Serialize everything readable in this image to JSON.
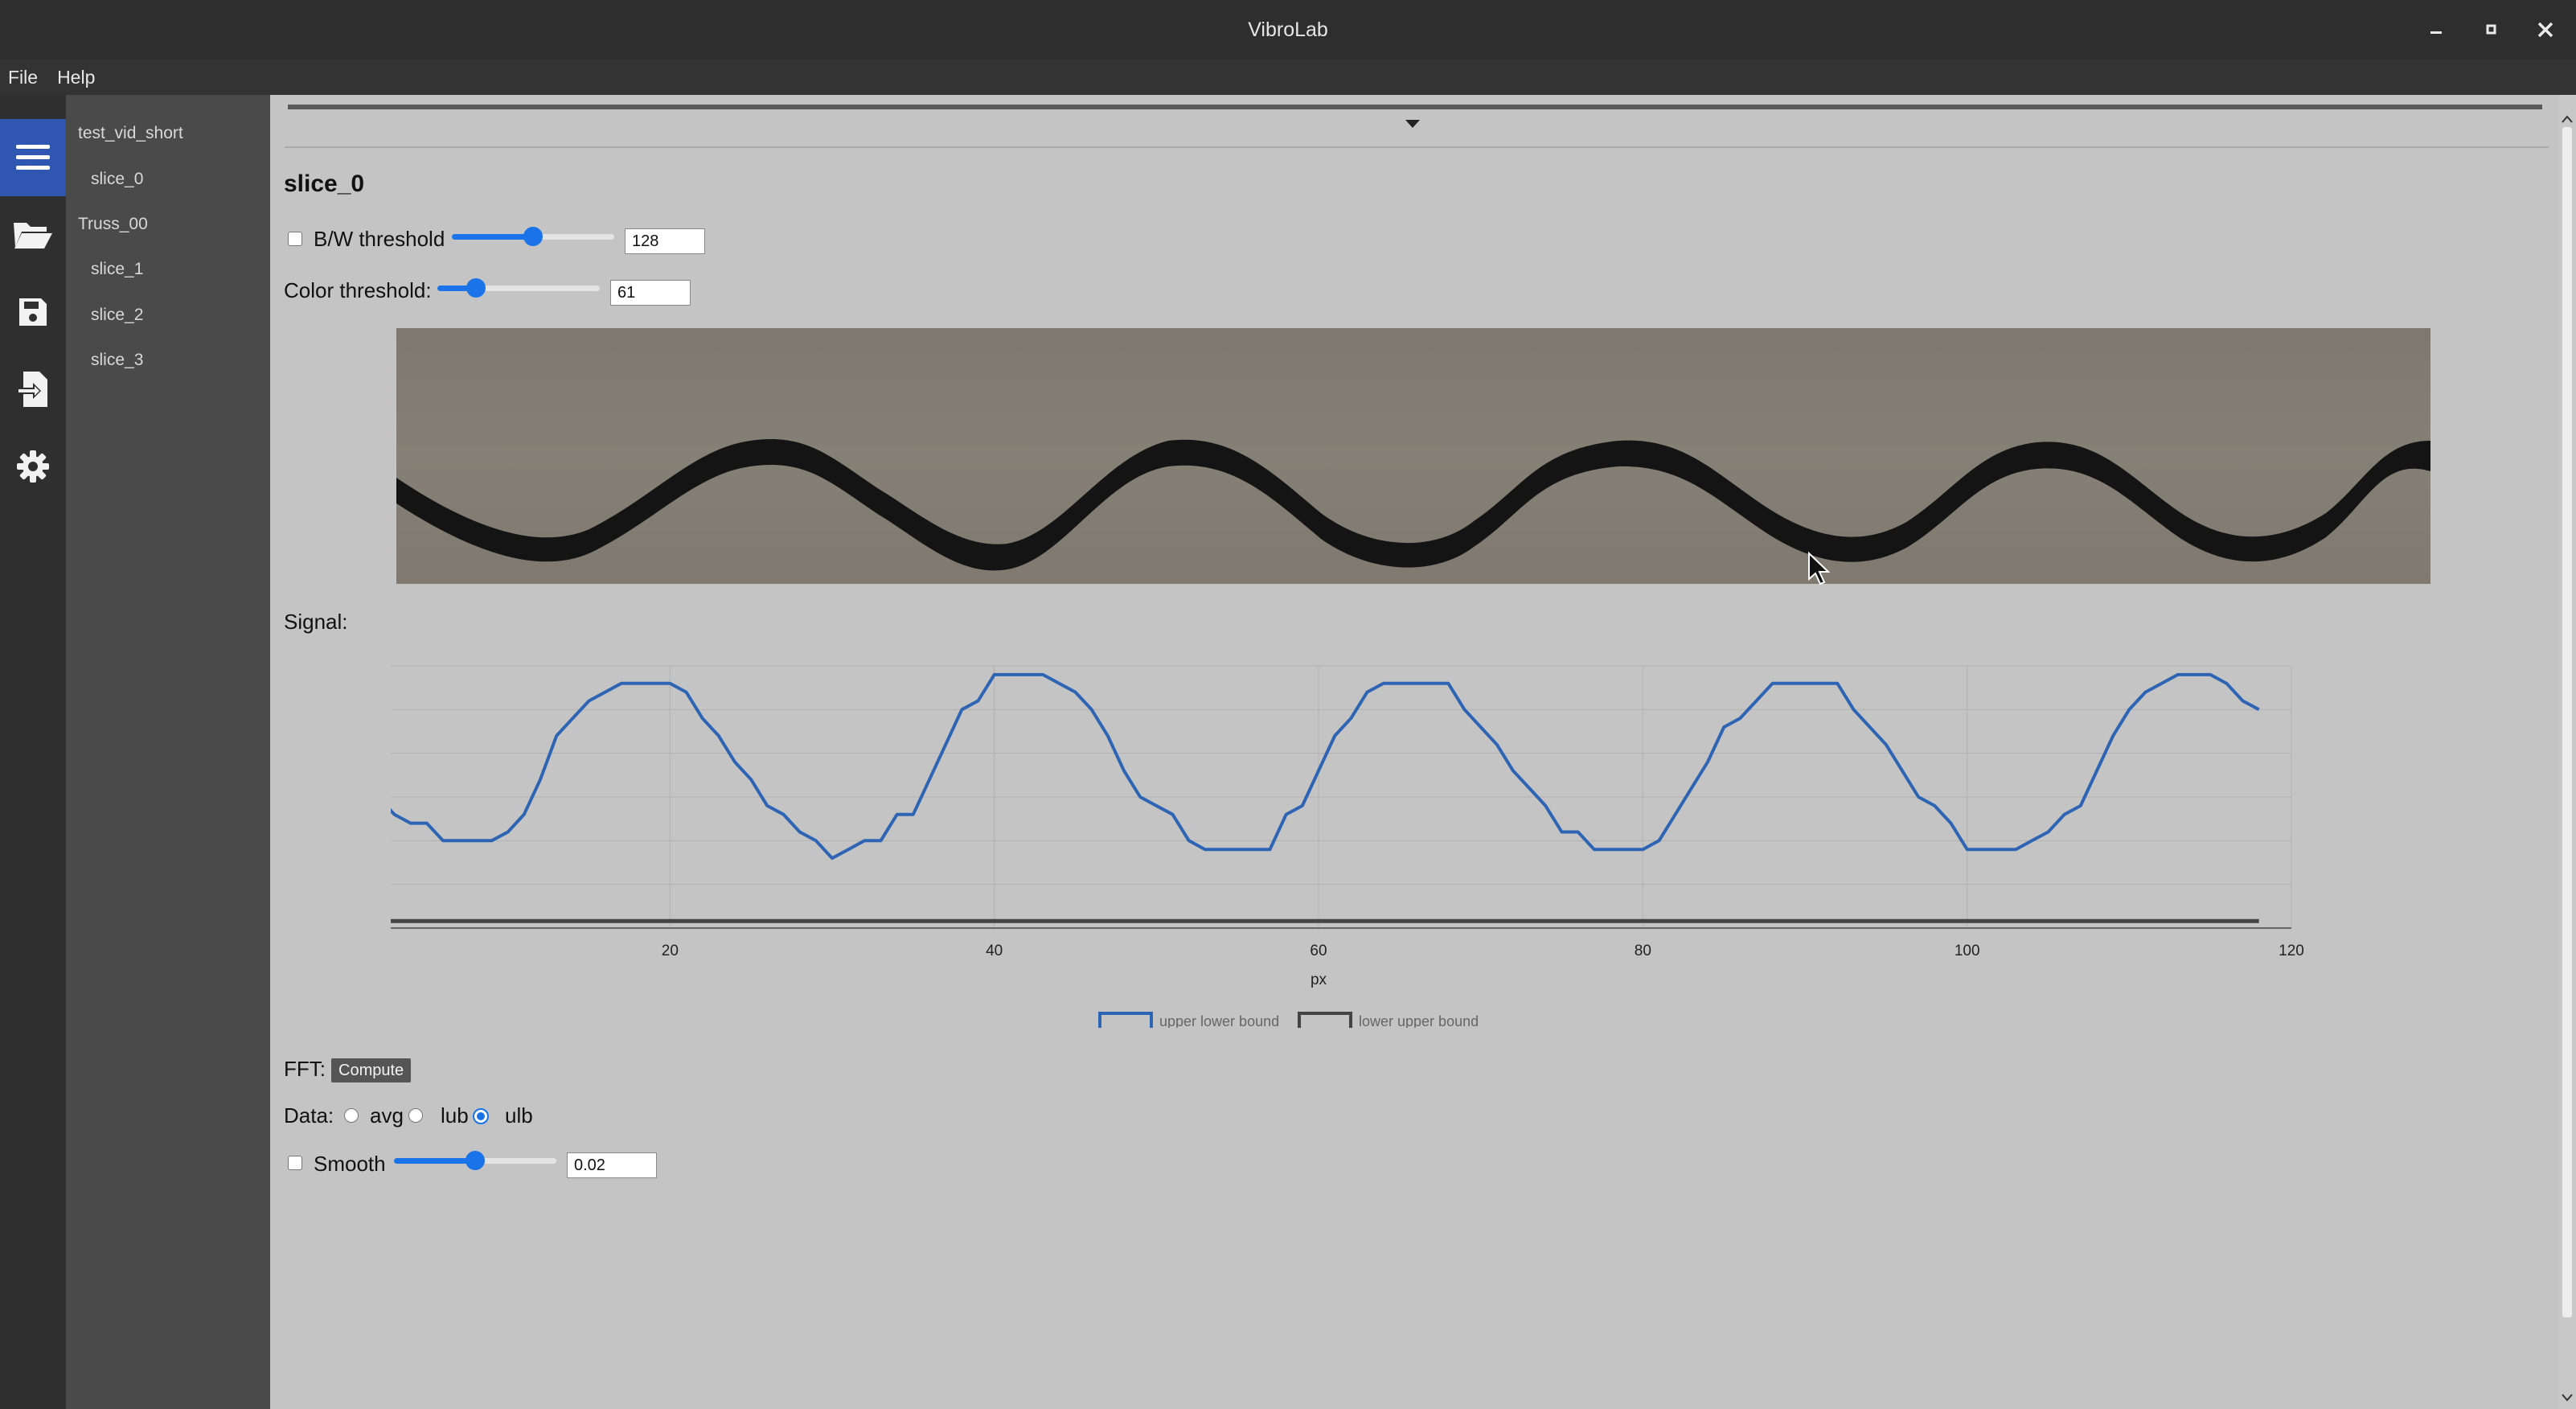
{
  "window": {
    "title": "VibroLab",
    "minimize": "–",
    "maximize": "▫",
    "close": "✕"
  },
  "menu": {
    "file": "File",
    "help": "Help"
  },
  "rail_icons": [
    "menu-icon",
    "folder-open-icon",
    "save-icon",
    "export-icon",
    "gear-icon"
  ],
  "tree": {
    "items": [
      {
        "label": "test_vid_short",
        "level": 0
      },
      {
        "label": "slice_0",
        "level": 1
      },
      {
        "label": "Truss_00",
        "level": 0
      },
      {
        "label": "slice_1",
        "level": 1
      },
      {
        "label": "slice_2",
        "level": 1
      },
      {
        "label": "slice_3",
        "level": 1
      }
    ]
  },
  "slice": {
    "title": "slice_0",
    "bw_label": "B/W threshold",
    "bw_value": "128",
    "bw_fraction": 0.5,
    "color_label": "Color threshold:",
    "color_value": "61",
    "color_fraction": 0.24
  },
  "signal_label": "Signal:",
  "fft": {
    "label": "FFT:",
    "button": "Compute"
  },
  "data_mode": {
    "label": "Data:",
    "options": [
      "avg",
      "lub",
      "ulb"
    ],
    "selected": "ulb"
  },
  "smooth": {
    "label": "Smooth",
    "value": "0.02",
    "fraction": 0.5
  },
  "colors": {
    "accent": "#1a73e8",
    "series_upper": "#2e64b4",
    "series_lower": "#444444"
  },
  "chart_data": {
    "type": "line",
    "xlabel": "px",
    "ylabel": "px",
    "xlim": [
      0,
      120
    ],
    "ylim": [
      -50,
      -20
    ],
    "xticks": [
      "0",
      "20",
      "40",
      "60",
      "80",
      "100",
      "120"
    ],
    "yticks": [
      "-20",
      "-25",
      "-30",
      "-35",
      "-40",
      "-45",
      "-50"
    ],
    "grid": true,
    "legend": "bottom-center",
    "series": [
      {
        "name": "upper lower bound",
        "x": [
          0,
          1,
          3,
          4,
          5,
          6,
          7,
          8,
          9,
          10,
          11,
          12,
          13,
          14,
          15,
          16,
          17,
          18,
          19,
          20,
          21,
          22,
          23,
          24,
          25,
          26,
          27,
          28,
          29,
          30,
          31,
          32,
          33,
          34,
          35,
          36,
          37,
          38,
          39,
          40,
          41,
          42,
          43,
          44,
          45,
          46,
          47,
          48,
          49,
          50,
          51,
          52,
          53,
          54,
          55,
          56,
          57,
          58,
          59,
          60,
          61,
          62,
          63,
          64,
          65,
          66,
          67,
          68,
          69,
          70,
          71,
          72,
          73,
          74,
          75,
          76,
          77,
          78,
          79,
          80,
          81,
          82,
          83,
          84,
          85,
          86,
          87,
          88,
          89,
          90,
          91,
          92,
          93,
          94,
          95,
          96,
          97,
          98,
          99,
          100,
          101,
          102,
          103,
          104,
          105,
          106,
          107,
          108,
          109,
          110,
          111,
          112,
          113,
          114,
          115,
          116,
          117,
          118
        ],
        "y": [
          -28,
          -33,
          -37,
          -38,
          -38,
          -40,
          -40,
          -40,
          -40,
          -39,
          -37,
          -33,
          -28,
          -26,
          -24,
          -23,
          -22,
          -22,
          -22,
          -22,
          -23,
          -26,
          -28,
          -31,
          -33,
          -36,
          -37,
          -39,
          -40,
          -42,
          -41,
          -40,
          -40,
          -37,
          -37,
          -33,
          -29,
          -25,
          -24,
          -21,
          -21,
          -21,
          -21,
          -22,
          -23,
          -25,
          -28,
          -32,
          -35,
          -36,
          -37,
          -40,
          -41,
          -41,
          -41,
          -41,
          -41,
          -37,
          -36,
          -32,
          -28,
          -26,
          -23,
          -22,
          -22,
          -22,
          -22,
          -22,
          -25,
          -27,
          -29,
          -32,
          -34,
          -36,
          -39,
          -39,
          -41,
          -41,
          -41,
          -41,
          -40,
          -37,
          -34,
          -31,
          -27,
          -26,
          -24,
          -22,
          -22,
          -22,
          -22,
          -22,
          -25,
          -27,
          -29,
          -32,
          -35,
          -36,
          -38,
          -41,
          -41,
          -41,
          -41,
          -40,
          -39,
          -37,
          -36,
          -32,
          -28,
          -25,
          -23,
          -22,
          -21,
          -21,
          -21,
          -22,
          -24,
          -25
        ]
      },
      {
        "name": "lower upper bound",
        "x": [
          0,
          118
        ],
        "y": [
          -49.2,
          -49.2
        ]
      }
    ]
  }
}
